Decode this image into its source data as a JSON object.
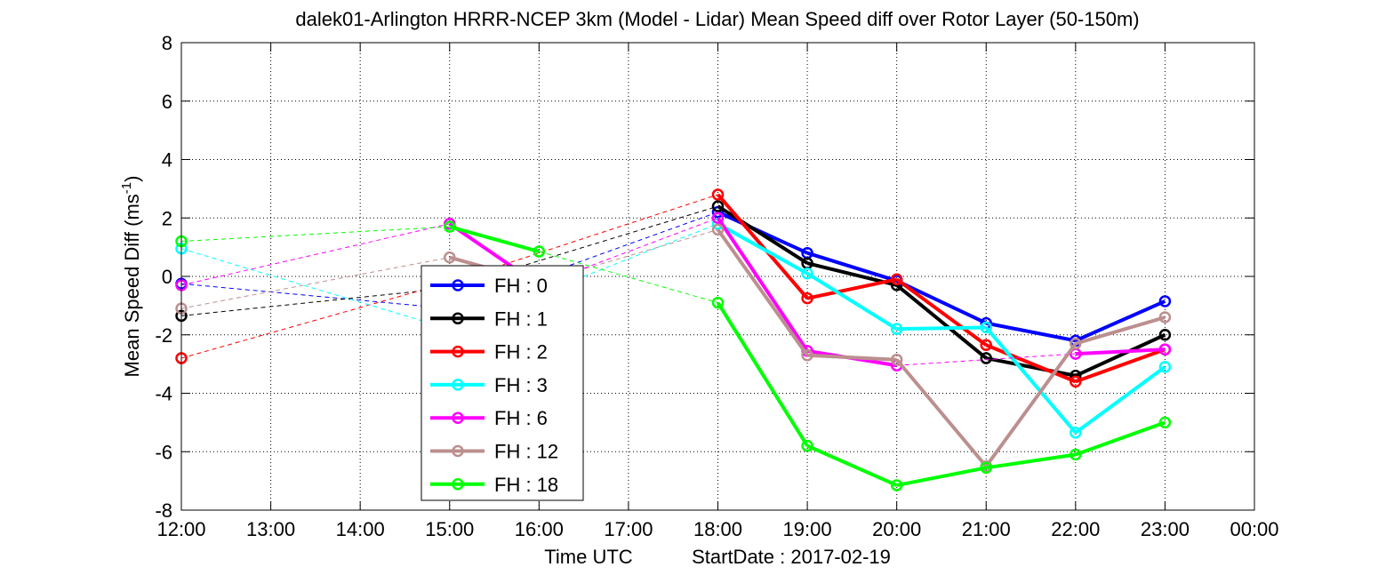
{
  "chart_data": {
    "type": "line",
    "title": "dalek01-Arlington HRRR-NCEP 3km (Model - Lidar) Mean Speed diff over Rotor Layer (50-150m)",
    "xlabel": "Time UTC",
    "start_date_label": "StartDate : 2017-02-19",
    "ylabel_main": "Mean Speed Diff (ms",
    "ylabel_sup": "-1",
    "ylabel_close": ")",
    "xlim": [
      12,
      24
    ],
    "ylim": [
      -8,
      8
    ],
    "x_ticks": [
      12,
      13,
      14,
      15,
      16,
      17,
      18,
      19,
      20,
      21,
      22,
      23,
      24
    ],
    "x_tick_labels": [
      "12:00",
      "13:00",
      "14:00",
      "15:00",
      "16:00",
      "17:00",
      "18:00",
      "19:00",
      "20:00",
      "21:00",
      "22:00",
      "23:00",
      "00:00"
    ],
    "y_ticks": [
      -8,
      -6,
      -4,
      -2,
      0,
      2,
      4,
      6,
      8
    ],
    "y_tick_labels": [
      "-8",
      "-6",
      "-4",
      "-2",
      "0",
      "2",
      "4",
      "6",
      "8"
    ],
    "grid": true,
    "legend_position": "center-left",
    "series": [
      {
        "name": "FH : 0",
        "color": "#0000ff",
        "points": [
          [
            12,
            -0.25
          ],
          [
            15,
            -1.1
          ],
          [
            18,
            2.2
          ],
          [
            19,
            0.8
          ],
          [
            20,
            -0.15
          ],
          [
            21,
            -1.6
          ],
          [
            22,
            -2.2
          ],
          [
            23,
            -0.85
          ]
        ]
      },
      {
        "name": "FH : 1",
        "color": "#000000",
        "points": [
          [
            12,
            -1.35
          ],
          [
            15,
            -0.4
          ],
          [
            18,
            2.4
          ],
          [
            19,
            0.45
          ],
          [
            20,
            -0.3
          ],
          [
            21,
            -2.8
          ],
          [
            22,
            -3.4
          ],
          [
            23,
            -2.0
          ]
        ]
      },
      {
        "name": "FH : 2",
        "color": "#ff0000",
        "points": [
          [
            12,
            -2.8
          ],
          [
            15,
            -0.2
          ],
          [
            18,
            2.8
          ],
          [
            19,
            -0.75
          ],
          [
            20,
            -0.1
          ],
          [
            21,
            -2.35
          ],
          [
            22,
            -3.6
          ],
          [
            23,
            -2.5
          ]
        ]
      },
      {
        "name": "FH : 3",
        "color": "#00ffff",
        "points": [
          [
            12,
            0.95
          ],
          [
            15,
            -1.8
          ],
          [
            18,
            1.8
          ],
          [
            19,
            0.1
          ],
          [
            20,
            -1.8
          ],
          [
            21,
            -1.75
          ],
          [
            22,
            -5.35
          ],
          [
            23,
            -3.1
          ]
        ]
      },
      {
        "name": "FH : 6",
        "color": "#ff00ff",
        "points": [
          [
            12,
            -0.3
          ],
          [
            15,
            1.8
          ],
          [
            16,
            -0.3
          ],
          [
            18,
            2.0
          ],
          [
            19,
            -2.55
          ],
          [
            20,
            -3.05
          ],
          [
            22,
            -2.65
          ],
          [
            23,
            -2.5
          ]
        ]
      },
      {
        "name": "FH : 12",
        "color": "#bc8f8f",
        "points": [
          [
            12,
            -1.1
          ],
          [
            15,
            0.65
          ],
          [
            16,
            -0.2
          ],
          [
            18,
            1.6
          ],
          [
            19,
            -2.7
          ],
          [
            20,
            -2.85
          ],
          [
            21,
            -6.5
          ],
          [
            22,
            -2.3
          ],
          [
            23,
            -1.4
          ]
        ]
      },
      {
        "name": "FH : 18",
        "color": "#00ff00",
        "points": [
          [
            12,
            1.2
          ],
          [
            15,
            1.7
          ],
          [
            16,
            0.85
          ],
          [
            18,
            -0.9
          ],
          [
            19,
            -5.8
          ],
          [
            20,
            -7.15
          ],
          [
            21,
            -6.55
          ],
          [
            22,
            -6.1
          ],
          [
            23,
            -5.0
          ]
        ]
      }
    ]
  }
}
